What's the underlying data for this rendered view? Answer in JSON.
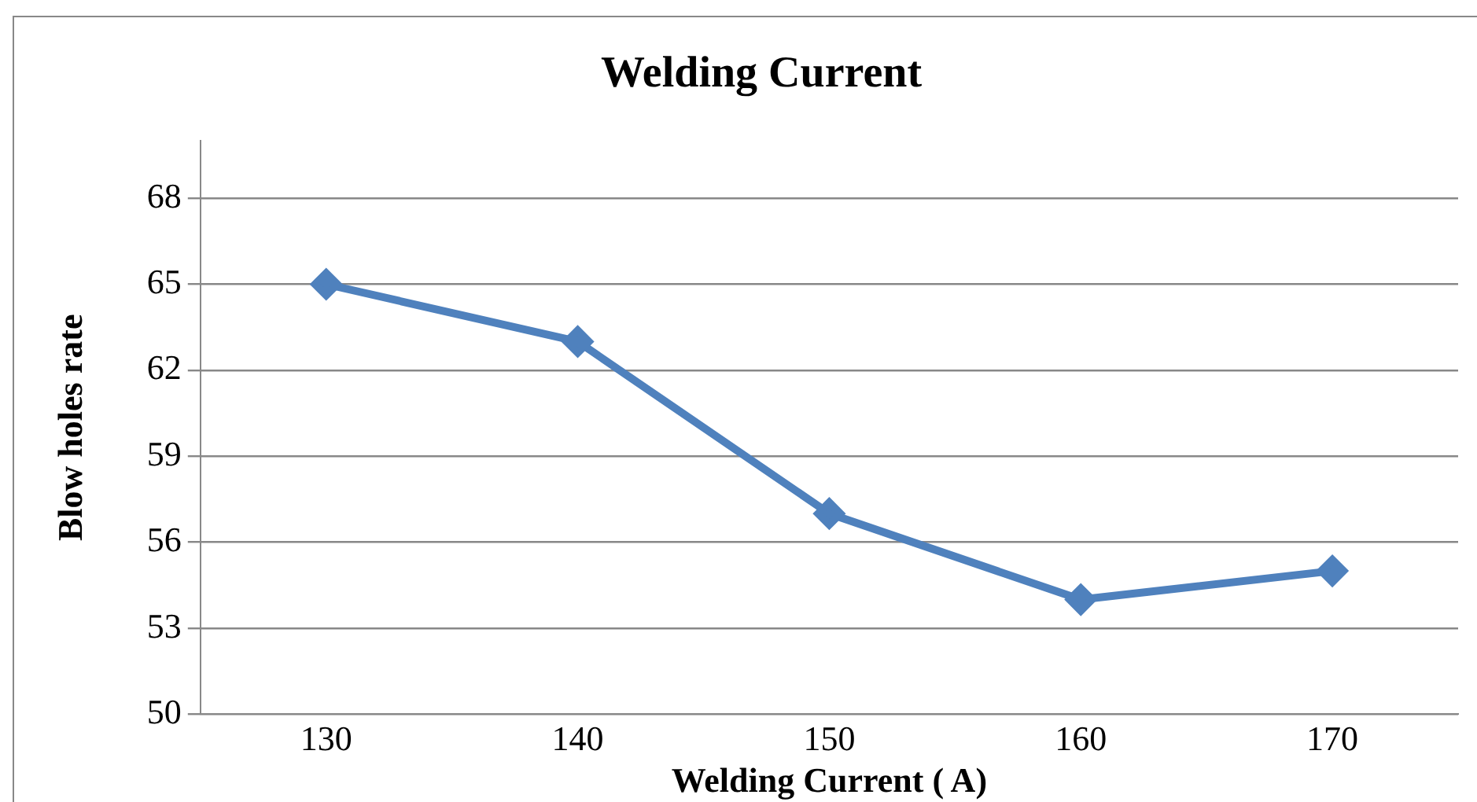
{
  "chart_data": {
    "type": "line",
    "title": "Welding Current",
    "xlabel": "Welding Current ( A)",
    "ylabel": "Blow holes rate",
    "categories": [
      "130",
      "140",
      "150",
      "160",
      "170"
    ],
    "series": [
      {
        "color": "#4f81bd",
        "values": [
          65,
          63,
          57,
          54,
          55
        ]
      }
    ],
    "ylim": [
      50,
      70
    ],
    "yticks": [
      50,
      53,
      56,
      59,
      62,
      65,
      68
    ],
    "grid": "y",
    "legend": false,
    "marker": "diamond",
    "line_style": "solid"
  }
}
